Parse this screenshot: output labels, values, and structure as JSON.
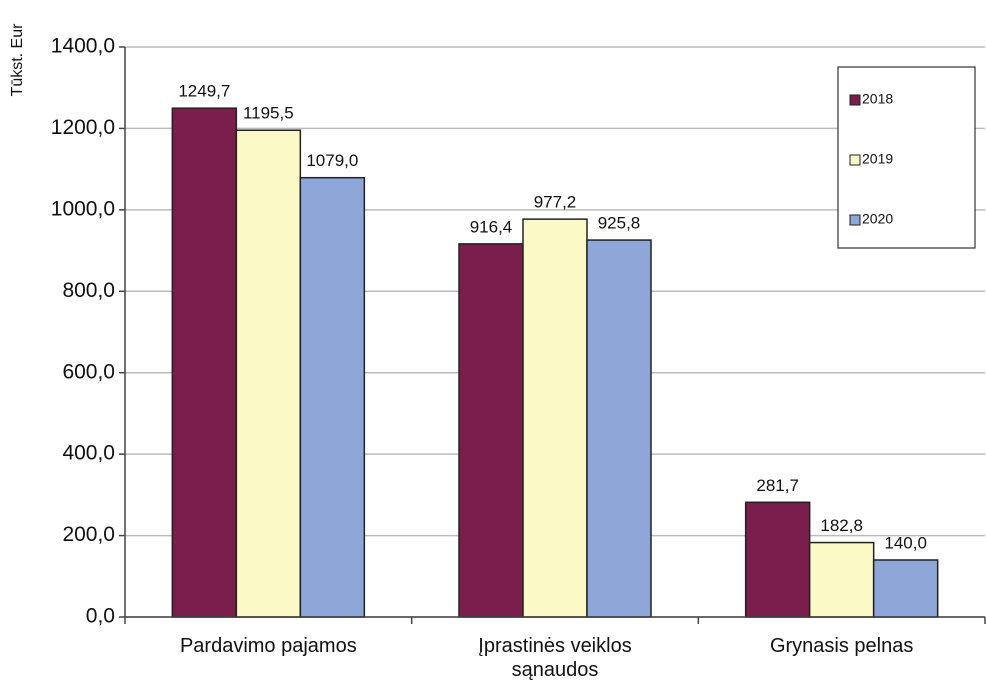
{
  "chart_data": {
    "type": "bar",
    "y_label": "Tūkst. Eur",
    "categories": [
      "Pardavimo pajamos",
      "Įprastinės veiklos sąnaudos",
      "Grynasis pelnas"
    ],
    "series": [
      {
        "name": "2018",
        "color": "#7a1e4b",
        "values": [
          1249.7,
          916.4,
          281.7
        ],
        "value_labels": [
          "1249,7",
          "916,4",
          "281,7"
        ]
      },
      {
        "name": "2019",
        "color": "#fbf9c6",
        "values": [
          1195.5,
          977.2,
          182.8
        ],
        "value_labels": [
          "1195,5",
          "977,2",
          "182,8"
        ]
      },
      {
        "name": "2020",
        "color": "#8ea7d8",
        "values": [
          1079.0,
          925.8,
          140.0
        ],
        "value_labels": [
          "1079,0",
          "925,8",
          "140,0"
        ]
      }
    ],
    "ylim": [
      0,
      1400
    ],
    "yticks": [
      {
        "value": 0,
        "label": "0,0"
      },
      {
        "value": 200,
        "label": "200,0"
      },
      {
        "value": 400,
        "label": "400,0"
      },
      {
        "value": 600,
        "label": "600,0"
      },
      {
        "value": 800,
        "label": "800,0"
      },
      {
        "value": 1000,
        "label": "1000,0"
      },
      {
        "value": 1200,
        "label": "1200,0"
      },
      {
        "value": 1400,
        "label": "1400,0"
      }
    ],
    "grid": true,
    "legend": "upper right"
  }
}
